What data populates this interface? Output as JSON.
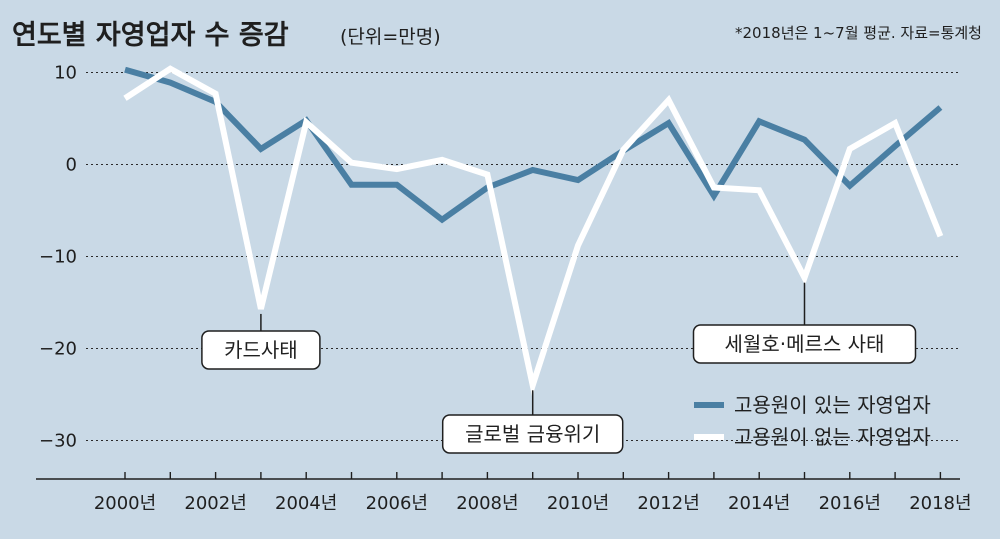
{
  "chart_data": {
    "type": "line",
    "title": "연도별 자영업자 수 증감",
    "unit": "(단위=만명)",
    "note": "*2018년은 1~7월 평균. 자료=통계청",
    "x": [
      2000,
      2001,
      2002,
      2003,
      2004,
      2005,
      2006,
      2007,
      2008,
      2009,
      2010,
      2011,
      2012,
      2013,
      2014,
      2015,
      2016,
      2017,
      2018
    ],
    "x_tick_labels": [
      "2000년",
      "2002년",
      "2004년",
      "2006년",
      "2008년",
      "2010년",
      "2012년",
      "2014년",
      "2016년",
      "2018년"
    ],
    "y_ticks": [
      10,
      0,
      -10,
      -20,
      -30
    ],
    "y_tick_labels": [
      "10",
      "0",
      "−10",
      "−20",
      "−30"
    ],
    "ylim": [
      -34,
      11
    ],
    "grid": true,
    "legend_position": "bottom-right",
    "series": [
      {
        "name": "고용원이 있는 자영업자",
        "color": "#4a7fa3",
        "values": [
          10.3,
          8.9,
          6.8,
          1.7,
          4.8,
          -2.2,
          -2.2,
          -6.0,
          -2.5,
          -0.6,
          -1.7,
          1.5,
          4.5,
          -3.4,
          4.7,
          2.7,
          -2.3,
          2.0,
          6.2
        ]
      },
      {
        "name": "고용원이 없는 자영업자",
        "color": "#ffffff",
        "values": [
          7.2,
          10.4,
          7.7,
          -15.7,
          4.6,
          0.2,
          -0.5,
          0.5,
          -1.1,
          -24.0,
          -8.8,
          1.6,
          7.0,
          -2.5,
          -2.8,
          -12.3,
          1.7,
          4.5,
          -7.8
        ]
      }
    ],
    "annotations": [
      {
        "text": "카드사태",
        "x": 2003
      },
      {
        "text": "글로벌 금융위기",
        "x": 2009
      },
      {
        "text": "세월호·메르스 사태",
        "x": 2015
      }
    ]
  }
}
